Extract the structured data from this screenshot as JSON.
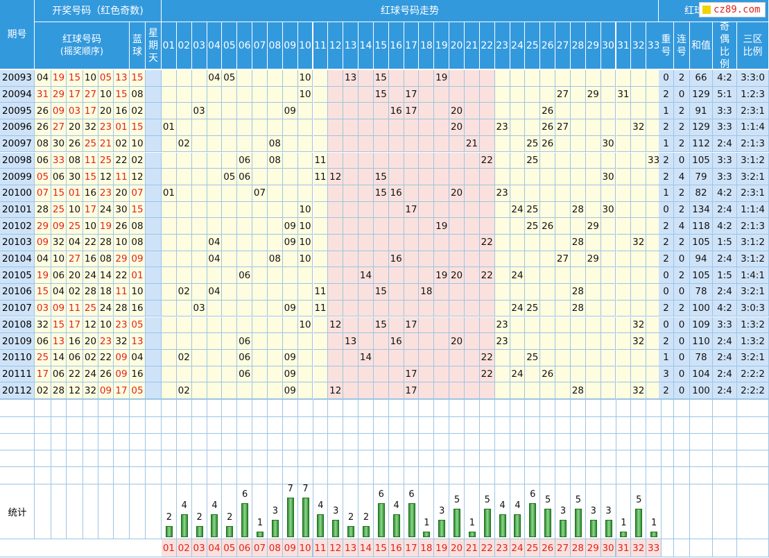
{
  "header": {
    "issue_label": "期号",
    "draw_group_label": "开奖号码（红色奇数)",
    "red_balls_label_line1": "红球号码",
    "red_balls_label_line2": "(摇奖顺序)",
    "blue_ball_label": "蓝球",
    "weekday_label": "星期天",
    "trend_label": "红球号码走势",
    "analysis_label": "红球号码分析",
    "repeat_label": "重号",
    "consecutive_label": "连号",
    "sum_label": "和值",
    "odd_even_label": "奇偶比例",
    "zone_label": "三区比例",
    "numbers": [
      "01",
      "02",
      "03",
      "04",
      "05",
      "06",
      "07",
      "08",
      "09",
      "10",
      "11",
      "12",
      "13",
      "14",
      "15",
      "16",
      "17",
      "18",
      "19",
      "20",
      "21",
      "22",
      "23",
      "24",
      "25",
      "26",
      "27",
      "28",
      "29",
      "30",
      "31",
      "32",
      "33"
    ]
  },
  "logo": {
    "text": "cz89.com",
    "icon": "logo-square-icon"
  },
  "colors": {
    "header_bg": "#3399dd",
    "odd_red": "#e0221b",
    "zone_pink": "#fbe1dd",
    "cell_yellow": "#fffde0",
    "bar_green": "#2e8b2e"
  },
  "rows": [
    {
      "issue": "20093",
      "reds": [
        "04",
        "19",
        "15",
        "10",
        "05",
        "13"
      ],
      "blue": "15",
      "repeat": "0",
      "consec": "2",
      "sum": "66",
      "oe": "4:2",
      "zone": "3:3:0"
    },
    {
      "issue": "20094",
      "reds": [
        "31",
        "29",
        "17",
        "27",
        "10",
        "15"
      ],
      "blue": "08",
      "repeat": "2",
      "consec": "0",
      "sum": "129",
      "oe": "5:1",
      "zone": "1:2:3"
    },
    {
      "issue": "20095",
      "reds": [
        "26",
        "09",
        "03",
        "17",
        "20",
        "16"
      ],
      "blue": "02",
      "repeat": "1",
      "consec": "2",
      "sum": "91",
      "oe": "3:3",
      "zone": "2:3:1"
    },
    {
      "issue": "20096",
      "reds": [
        "26",
        "27",
        "20",
        "32",
        "23",
        "01"
      ],
      "blue": "15",
      "repeat": "2",
      "consec": "2",
      "sum": "129",
      "oe": "3:3",
      "zone": "1:1:4"
    },
    {
      "issue": "20097",
      "reds": [
        "08",
        "30",
        "26",
        "25",
        "21",
        "02"
      ],
      "blue": "10",
      "repeat": "1",
      "consec": "2",
      "sum": "112",
      "oe": "2:4",
      "zone": "2:1:3"
    },
    {
      "issue": "20098",
      "reds": [
        "06",
        "33",
        "08",
        "11",
        "25",
        "22"
      ],
      "blue": "02",
      "repeat": "2",
      "consec": "0",
      "sum": "105",
      "oe": "3:3",
      "zone": "3:1:2"
    },
    {
      "issue": "20099",
      "reds": [
        "05",
        "06",
        "30",
        "15",
        "12",
        "11"
      ],
      "blue": "12",
      "repeat": "2",
      "consec": "4",
      "sum": "79",
      "oe": "3:3",
      "zone": "3:2:1"
    },
    {
      "issue": "20100",
      "reds": [
        "07",
        "15",
        "01",
        "16",
        "23",
        "20"
      ],
      "blue": "07",
      "repeat": "1",
      "consec": "2",
      "sum": "82",
      "oe": "4:2",
      "zone": "2:3:1"
    },
    {
      "issue": "20101",
      "reds": [
        "28",
        "25",
        "10",
        "17",
        "24",
        "30"
      ],
      "blue": "15",
      "repeat": "0",
      "consec": "2",
      "sum": "134",
      "oe": "2:4",
      "zone": "1:1:4"
    },
    {
      "issue": "20102",
      "reds": [
        "29",
        "09",
        "25",
        "10",
        "19",
        "26"
      ],
      "blue": "08",
      "repeat": "2",
      "consec": "4",
      "sum": "118",
      "oe": "4:2",
      "zone": "2:1:3"
    },
    {
      "issue": "20103",
      "reds": [
        "09",
        "32",
        "04",
        "22",
        "28",
        "10"
      ],
      "blue": "08",
      "repeat": "2",
      "consec": "2",
      "sum": "105",
      "oe": "1:5",
      "zone": "3:1:2"
    },
    {
      "issue": "20104",
      "reds": [
        "04",
        "10",
        "27",
        "16",
        "08",
        "29"
      ],
      "blue": "09",
      "repeat": "2",
      "consec": "0",
      "sum": "94",
      "oe": "2:4",
      "zone": "3:1:2"
    },
    {
      "issue": "20105",
      "reds": [
        "19",
        "06",
        "20",
        "24",
        "14",
        "22"
      ],
      "blue": "01",
      "repeat": "0",
      "consec": "2",
      "sum": "105",
      "oe": "1:5",
      "zone": "1:4:1"
    },
    {
      "issue": "20106",
      "reds": [
        "15",
        "04",
        "02",
        "28",
        "18",
        "11"
      ],
      "blue": "10",
      "repeat": "0",
      "consec": "0",
      "sum": "78",
      "oe": "2:4",
      "zone": "3:2:1"
    },
    {
      "issue": "20107",
      "reds": [
        "03",
        "09",
        "11",
        "25",
        "24",
        "28"
      ],
      "blue": "16",
      "repeat": "2",
      "consec": "2",
      "sum": "100",
      "oe": "4:2",
      "zone": "3:0:3"
    },
    {
      "issue": "20108",
      "reds": [
        "32",
        "15",
        "17",
        "12",
        "10",
        "23"
      ],
      "blue": "05",
      "repeat": "0",
      "consec": "0",
      "sum": "109",
      "oe": "3:3",
      "zone": "1:3:2"
    },
    {
      "issue": "20109",
      "reds": [
        "06",
        "13",
        "16",
        "20",
        "23",
        "32"
      ],
      "blue": "13",
      "repeat": "2",
      "consec": "0",
      "sum": "110",
      "oe": "2:4",
      "zone": "1:3:2"
    },
    {
      "issue": "20110",
      "reds": [
        "25",
        "14",
        "06",
        "02",
        "22",
        "09"
      ],
      "blue": "04",
      "repeat": "1",
      "consec": "0",
      "sum": "78",
      "oe": "2:4",
      "zone": "3:2:1"
    },
    {
      "issue": "20111",
      "reds": [
        "17",
        "06",
        "22",
        "24",
        "26",
        "09"
      ],
      "blue": "16",
      "repeat": "3",
      "consec": "0",
      "sum": "104",
      "oe": "2:4",
      "zone": "2:2:2"
    },
    {
      "issue": "20112",
      "reds": [
        "02",
        "28",
        "12",
        "32",
        "09",
        "17"
      ],
      "blue": "05",
      "repeat": "2",
      "consec": "0",
      "sum": "100",
      "oe": "2:4",
      "zone": "2:2:2"
    }
  ],
  "stats": {
    "label": "统计"
  },
  "chart_data": {
    "type": "bar",
    "categories": [
      "01",
      "02",
      "03",
      "04",
      "05",
      "06",
      "07",
      "08",
      "09",
      "10",
      "11",
      "12",
      "13",
      "14",
      "15",
      "16",
      "17",
      "18",
      "19",
      "20",
      "21",
      "22",
      "23",
      "24",
      "25",
      "26",
      "27",
      "28",
      "29",
      "30",
      "31",
      "32",
      "33"
    ],
    "values": [
      2,
      4,
      2,
      4,
      2,
      6,
      1,
      3,
      7,
      7,
      4,
      3,
      2,
      2,
      6,
      4,
      6,
      1,
      3,
      5,
      1,
      5,
      4,
      4,
      6,
      5,
      3,
      5,
      3,
      3,
      1,
      5,
      1
    ],
    "title": "",
    "xlabel": "",
    "ylabel": ""
  }
}
